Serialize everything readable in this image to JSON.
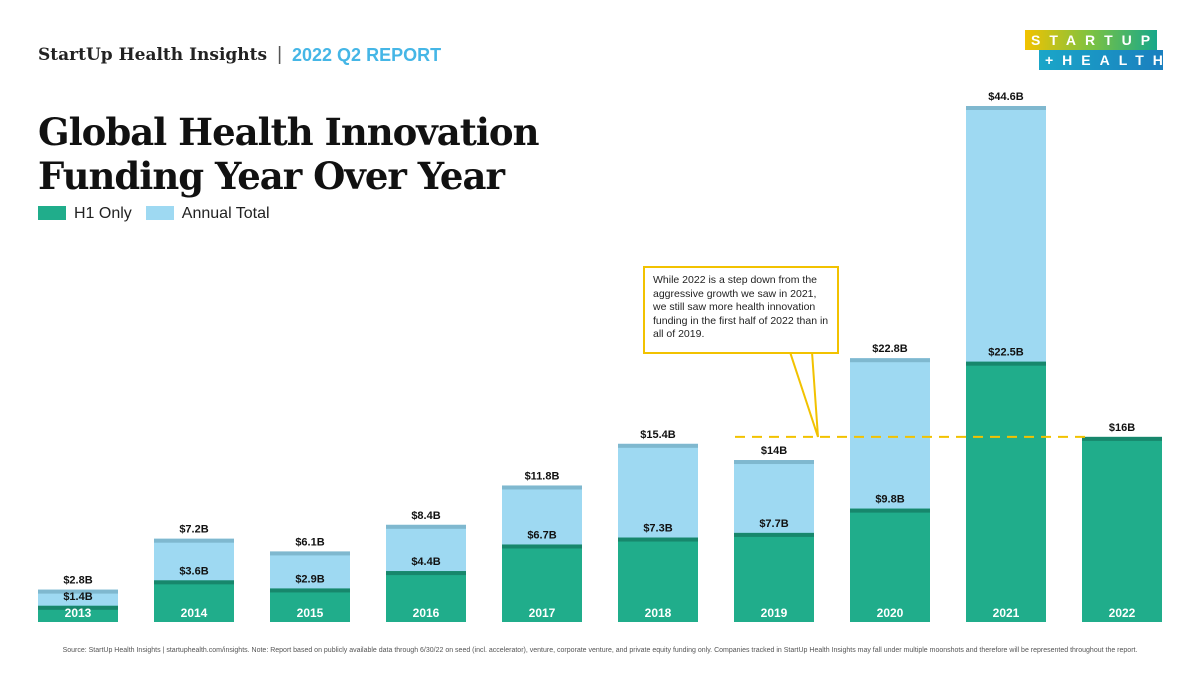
{
  "header": {
    "brand": "StartUp Health Insights",
    "separator": "|",
    "report": "2022 Q2 REPORT"
  },
  "logo": {
    "line1": "STARTUP",
    "line2": "+HEALTH",
    "mark": "®"
  },
  "chart_data": {
    "type": "bar",
    "title": "Global Health Innovation Funding Year Over Year",
    "categories": [
      "2013",
      "2014",
      "2015",
      "2016",
      "2017",
      "2018",
      "2019",
      "2020",
      "2021",
      "2022"
    ],
    "series": [
      {
        "name": "H1 Only",
        "color": "#20ad8b",
        "values": [
          1.4,
          3.6,
          2.9,
          4.4,
          6.7,
          7.3,
          7.7,
          9.8,
          22.5,
          16
        ],
        "labels": [
          "$1.4B",
          "$3.6B",
          "$2.9B",
          "$4.4B",
          "$6.7B",
          "$7.3B",
          "$7.7B",
          "$9.8B",
          "$22.5B",
          "$16B"
        ]
      },
      {
        "name": "Annual Total",
        "color": "#9ed9f2",
        "values": [
          2.8,
          7.2,
          6.1,
          8.4,
          11.8,
          15.4,
          14,
          22.8,
          44.6,
          null
        ],
        "labels": [
          "$2.8B",
          "$7.2B",
          "$6.1B",
          "$8.4B",
          "$11.8B",
          "$15.4B",
          "$14B",
          "$22.8B",
          "$44.6B",
          ""
        ]
      }
    ],
    "unit": "$B",
    "reference_line": {
      "value": 16,
      "style": "dashed",
      "color": "#f2c200"
    },
    "annotation": "While 2022 is a step down from the aggressive growth we saw in 2021, we still saw more health innovation funding in the first half of 2022 than in all of 2019.",
    "legend_placement": "top-left",
    "grid": false
  },
  "footer": "Source: StartUp Health Insights | startuphealth.com/insights. Note: Report based on publicly available data through 6/30/22  on seed (incl. accelerator), venture, corporate venture, and private equity funding only. Companies tracked in StartUp Health Insights may fall under multiple moonshots and therefore will be represented throughout the report."
}
